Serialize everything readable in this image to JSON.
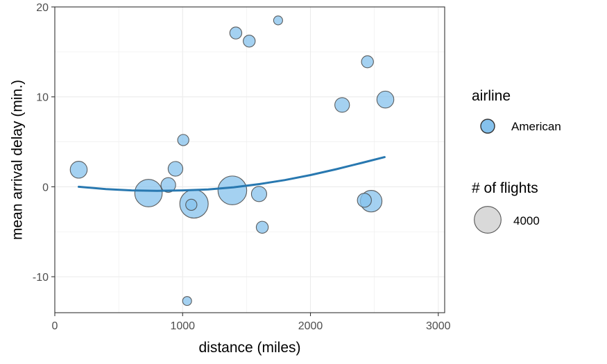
{
  "chart_data": {
    "type": "scatter",
    "title": "",
    "xlabel": "distance (miles)",
    "ylabel": "mean arrival delay (min.)",
    "xlim": [
      0,
      3050
    ],
    "ylim": [
      -14,
      20
    ],
    "x_ticks": [
      0,
      1000,
      2000,
      3000
    ],
    "y_ticks": [
      -10,
      0,
      10,
      20
    ],
    "x_tick_labels": [
      "0",
      "1000",
      "2000",
      "3000"
    ],
    "y_tick_labels": [
      "-10",
      "0",
      "10",
      "20"
    ],
    "grid": true,
    "point_color": "#85C1EC",
    "point_stroke": "#4d4d4d",
    "trend_color": "#2878B0",
    "series": [
      {
        "name": "American",
        "points": [
          {
            "x": 187,
            "y": 1.9,
            "flights": 1600
          },
          {
            "x": 733,
            "y": -0.7,
            "flights": 4200
          },
          {
            "x": 888,
            "y": 0.2,
            "flights": 1200
          },
          {
            "x": 944,
            "y": 2.0,
            "flights": 1200
          },
          {
            "x": 1005,
            "y": 5.2,
            "flights": 700
          },
          {
            "x": 1035,
            "y": -12.7,
            "flights": 450
          },
          {
            "x": 1068,
            "y": -2.0,
            "flights": 700
          },
          {
            "x": 1089,
            "y": -1.9,
            "flights": 4500
          },
          {
            "x": 1389,
            "y": -0.4,
            "flights": 4600
          },
          {
            "x": 1416,
            "y": 17.1,
            "flights": 800
          },
          {
            "x": 1521,
            "y": 16.2,
            "flights": 800
          },
          {
            "x": 1598,
            "y": -0.8,
            "flights": 1300
          },
          {
            "x": 1623,
            "y": -4.5,
            "flights": 800
          },
          {
            "x": 1747,
            "y": 18.5,
            "flights": 450
          },
          {
            "x": 2248,
            "y": 9.1,
            "flights": 1200
          },
          {
            "x": 2422,
            "y": -1.5,
            "flights": 1100
          },
          {
            "x": 2446,
            "y": 13.9,
            "flights": 800
          },
          {
            "x": 2475,
            "y": -1.6,
            "flights": 2600
          },
          {
            "x": 2586,
            "y": 9.7,
            "flights": 1600
          }
        ]
      }
    ],
    "trend_line": {
      "x": [
        187,
        400,
        600,
        800,
        1000,
        1200,
        1400,
        1600,
        1800,
        2000,
        2200,
        2400,
        2580
      ],
      "y": [
        0.0,
        -0.25,
        -0.4,
        -0.45,
        -0.4,
        -0.3,
        -0.05,
        0.3,
        0.75,
        1.3,
        1.95,
        2.65,
        3.3
      ]
    },
    "legend": {
      "placement": "right",
      "airline_title": "airline",
      "airline_label": "American",
      "size_title": "# of flights",
      "size_label": "4000",
      "size_value": 4000
    }
  }
}
